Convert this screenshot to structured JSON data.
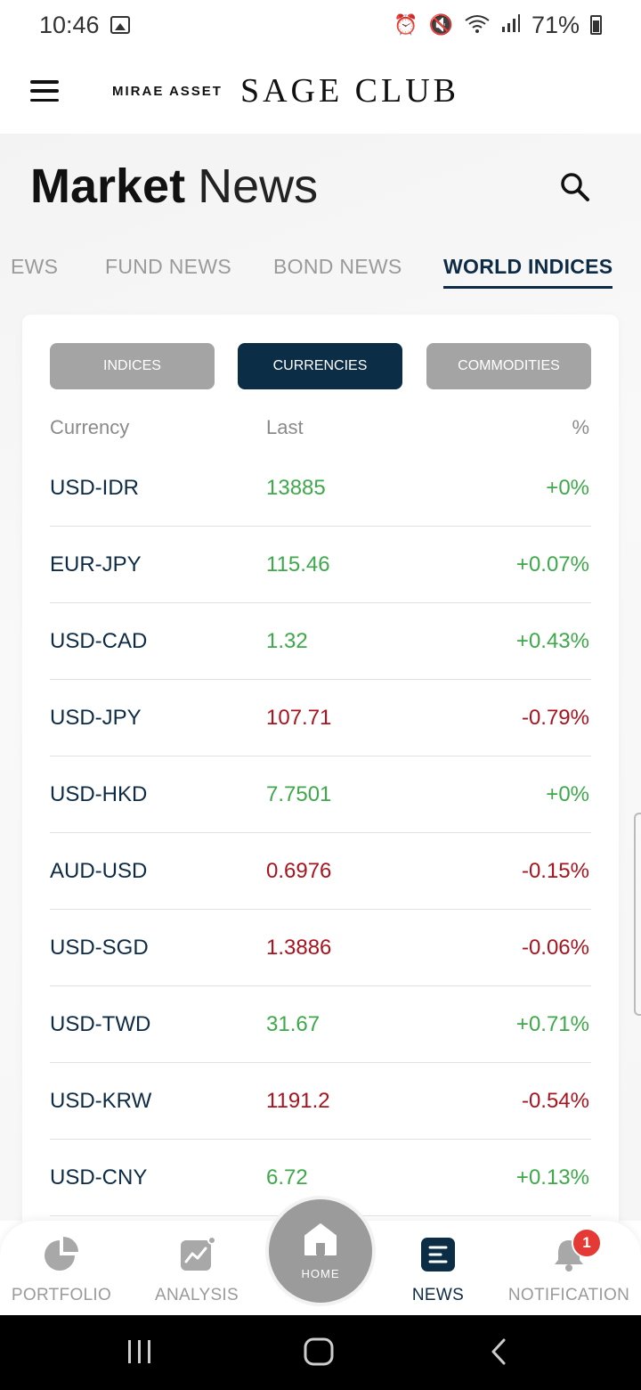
{
  "status_bar": {
    "time": "10:46",
    "battery": "71%"
  },
  "header": {
    "brand_small": "MIRAE ASSET",
    "brand_large": "SAGE CLUB"
  },
  "page": {
    "title_strong": "Market",
    "title_light": "News"
  },
  "tabs": [
    {
      "label": "EWS"
    },
    {
      "label": "FUND NEWS"
    },
    {
      "label": "BOND NEWS"
    },
    {
      "label": "WORLD INDICES",
      "active": true
    }
  ],
  "segments": [
    {
      "label": "INDICES"
    },
    {
      "label": "CURRENCIES",
      "active": true
    },
    {
      "label": "COMMODITIES"
    }
  ],
  "table": {
    "headers": [
      "Currency",
      "Last",
      "%"
    ],
    "rows": [
      {
        "currency": "USD-IDR",
        "last": "13885",
        "pct": "+0%",
        "trend": "up"
      },
      {
        "currency": "EUR-JPY",
        "last": "115.46",
        "pct": "+0.07%",
        "trend": "up"
      },
      {
        "currency": "USD-CAD",
        "last": "1.32",
        "pct": "+0.43%",
        "trend": "up"
      },
      {
        "currency": "USD-JPY",
        "last": "107.71",
        "pct": "-0.79%",
        "trend": "down"
      },
      {
        "currency": "USD-HKD",
        "last": "7.7501",
        "pct": "+0%",
        "trend": "up"
      },
      {
        "currency": "AUD-USD",
        "last": "0.6976",
        "pct": "-0.15%",
        "trend": "down"
      },
      {
        "currency": "USD-SGD",
        "last": "1.3886",
        "pct": "-0.06%",
        "trend": "down"
      },
      {
        "currency": "USD-TWD",
        "last": "31.67",
        "pct": "+0.71%",
        "trend": "up"
      },
      {
        "currency": "USD-KRW",
        "last": "1191.2",
        "pct": "-0.54%",
        "trend": "down"
      },
      {
        "currency": "USD-CNY",
        "last": "6.72",
        "pct": "+0.13%",
        "trend": "up"
      }
    ]
  },
  "bottom_nav": {
    "portfolio": "PORTFOLIO",
    "analysis": "ANALYSIS",
    "home": "HOME",
    "news": "NEWS",
    "notification": "NOTIFICATION",
    "notification_count": "1"
  },
  "colors": {
    "brand_navy": "#0b2e46",
    "up": "#3ea84a",
    "down": "#a8141e",
    "badge": "#e53935"
  }
}
